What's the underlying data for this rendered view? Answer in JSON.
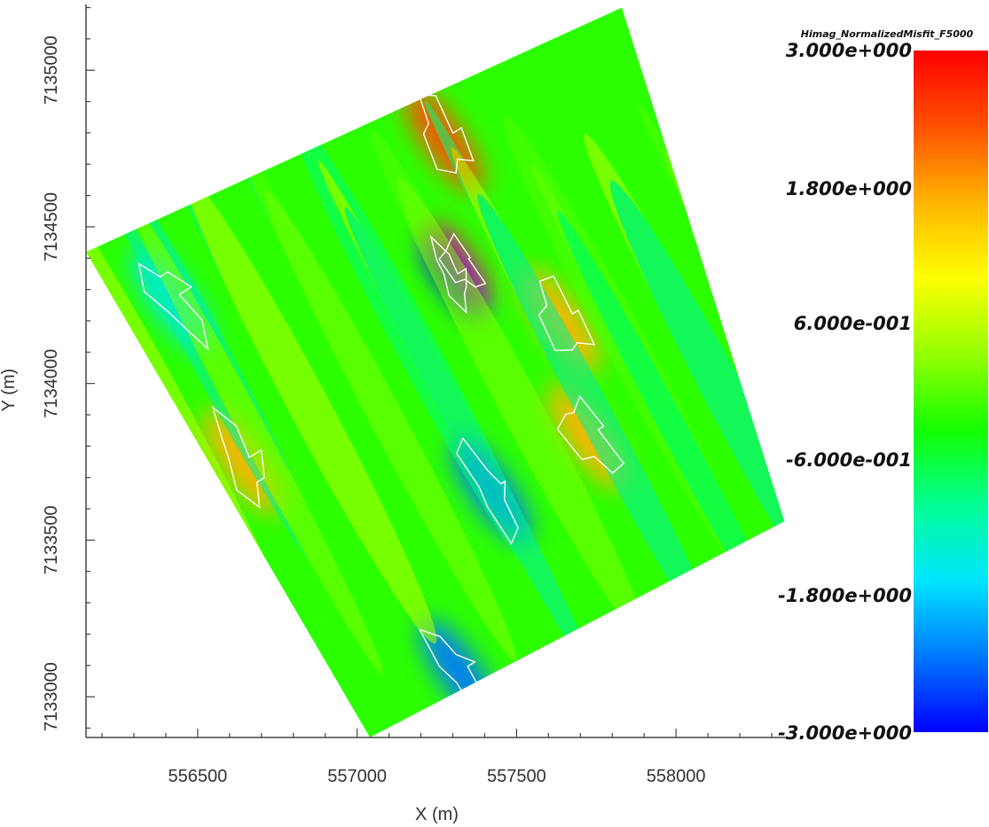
{
  "chart_data": {
    "type": "heatmap",
    "title": "",
    "xlabel": "X (m)",
    "ylabel": "Y (m)",
    "xlim": [
      556150,
      558350
    ],
    "ylim": [
      7132870,
      7135210
    ],
    "x_ticks": [
      556500,
      557000,
      557500,
      558000
    ],
    "y_ticks": [
      7133000,
      7133500,
      7134000,
      7134500,
      7135000
    ],
    "grid": false,
    "survey_outline": [
      {
        "x": 556150,
        "y": 7134420
      },
      {
        "x": 557830,
        "y": 7135200
      },
      {
        "x": 558340,
        "y": 7133560
      },
      {
        "x": 557040,
        "y": 7132870
      }
    ],
    "anomalies": [
      {
        "x": 557320,
        "y": 7134380,
        "value": 3.0
      },
      {
        "x": 557270,
        "y": 7134780,
        "value": 2.6
      },
      {
        "x": 557300,
        "y": 7134340,
        "value": -3.0
      },
      {
        "x": 557420,
        "y": 7133660,
        "value": -2.4
      },
      {
        "x": 557320,
        "y": 7133080,
        "value": -2.2
      },
      {
        "x": 556420,
        "y": 7134270,
        "value": -1.7
      },
      {
        "x": 557720,
        "y": 7133830,
        "value": 1.8
      },
      {
        "x": 557640,
        "y": 7134200,
        "value": 1.5
      },
      {
        "x": 556640,
        "y": 7133750,
        "value": 1.6
      }
    ],
    "colorbar": {
      "title": "Himag_NormalizedMisfit_F5000",
      "min": -3.0,
      "max": 3.0,
      "labels": [
        "3.000e+000",
        "1.800e+000",
        "6.000e-001",
        "-6.000e-001",
        "-1.800e+000",
        "-3.000e+000"
      ],
      "colors": [
        "#0000ff",
        "#0078ff",
        "#00e6ff",
        "#00ff96",
        "#14ff00",
        "#96ff00",
        "#ffff00",
        "#ffb400",
        "#ff5000",
        "#ff0000"
      ]
    }
  }
}
